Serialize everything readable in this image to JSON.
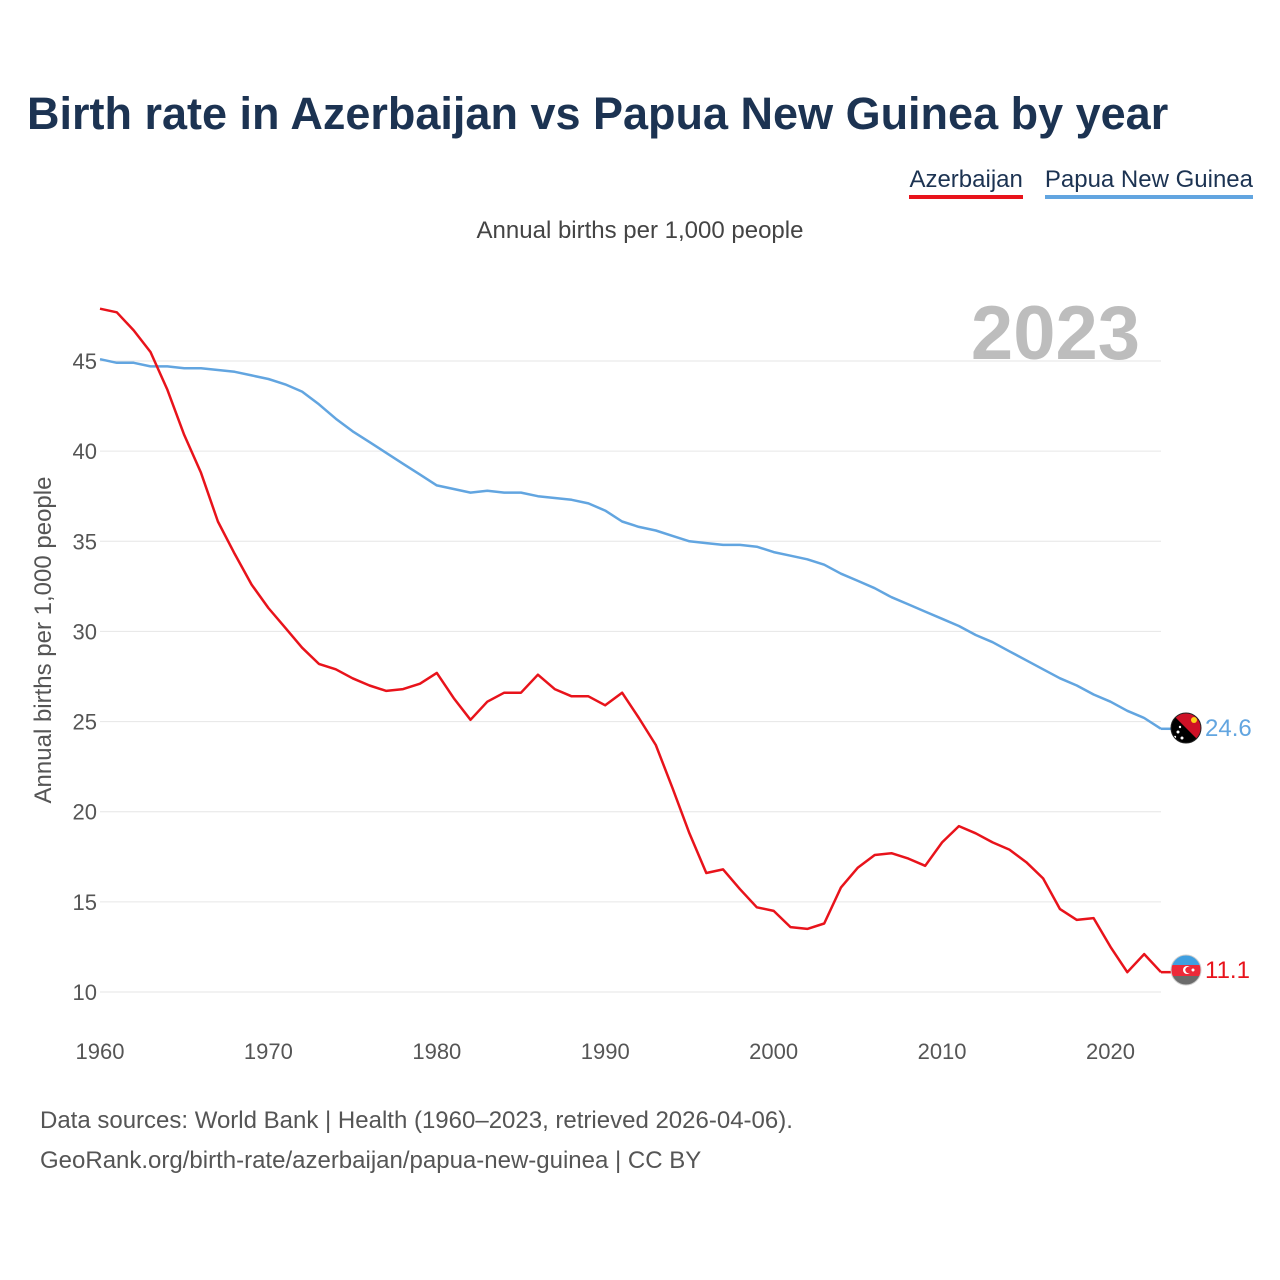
{
  "chart_data": {
    "type": "line",
    "title": "Birth rate in Azerbaijan vs Papua New Guinea by year",
    "subtitle": "Annual births per 1,000 people",
    "ylabel": "Annual births per 1,000 people",
    "xlabel": "",
    "year_badge": "2023",
    "xlim": [
      1960,
      2023
    ],
    "ylim": [
      10,
      47.5
    ],
    "x_ticks": [
      1960,
      1970,
      1980,
      1990,
      2000,
      2010,
      2020
    ],
    "y_ticks": [
      10,
      15,
      20,
      25,
      30,
      35,
      40,
      45
    ],
    "grid": true,
    "legend_position": "top-right",
    "x": [
      1960,
      1961,
      1962,
      1963,
      1964,
      1965,
      1966,
      1967,
      1968,
      1969,
      1970,
      1971,
      1972,
      1973,
      1974,
      1975,
      1976,
      1977,
      1978,
      1979,
      1980,
      1981,
      1982,
      1983,
      1984,
      1985,
      1986,
      1987,
      1988,
      1989,
      1990,
      1991,
      1992,
      1993,
      1994,
      1995,
      1996,
      1997,
      1998,
      1999,
      2000,
      2001,
      2002,
      2003,
      2004,
      2005,
      2006,
      2007,
      2008,
      2009,
      2010,
      2011,
      2012,
      2013,
      2014,
      2015,
      2016,
      2017,
      2018,
      2019,
      2020,
      2021,
      2022,
      2023
    ],
    "series": [
      {
        "name": "Azerbaijan",
        "color": "#e8131b",
        "end_label": "11.1",
        "values": [
          47.9,
          47.7,
          46.7,
          45.5,
          43.4,
          40.9,
          38.8,
          36.1,
          34.3,
          32.6,
          31.3,
          30.2,
          29.1,
          28.2,
          27.9,
          27.4,
          27.0,
          26.7,
          26.8,
          27.1,
          27.7,
          26.3,
          25.1,
          26.1,
          26.6,
          26.6,
          27.6,
          26.8,
          26.4,
          26.4,
          25.9,
          26.6,
          25.2,
          23.7,
          21.3,
          18.8,
          16.6,
          16.8,
          15.7,
          14.7,
          14.5,
          13.6,
          13.5,
          13.8,
          15.8,
          16.9,
          17.6,
          17.7,
          17.4,
          17.0,
          18.3,
          19.2,
          18.8,
          18.3,
          17.9,
          17.2,
          16.3,
          14.6,
          14.0,
          14.1,
          12.5,
          11.1,
          12.1,
          11.1
        ]
      },
      {
        "name": "Papua New Guinea",
        "color": "#62a5e0",
        "end_label": "24.6",
        "values": [
          45.1,
          44.9,
          44.9,
          44.7,
          44.7,
          44.6,
          44.6,
          44.5,
          44.4,
          44.2,
          44.0,
          43.7,
          43.3,
          42.6,
          41.8,
          41.1,
          40.5,
          39.9,
          39.3,
          38.7,
          38.1,
          37.9,
          37.7,
          37.8,
          37.7,
          37.7,
          37.5,
          37.4,
          37.3,
          37.1,
          36.7,
          36.1,
          35.8,
          35.6,
          35.3,
          35.0,
          34.9,
          34.8,
          34.8,
          34.7,
          34.4,
          34.2,
          34.0,
          33.7,
          33.2,
          32.8,
          32.4,
          31.9,
          31.5,
          31.1,
          30.7,
          30.3,
          29.8,
          29.4,
          28.9,
          28.4,
          27.9,
          27.4,
          27.0,
          26.5,
          26.1,
          25.6,
          25.2,
          24.6
        ]
      }
    ]
  },
  "sources": {
    "line1": "Data sources: World Bank | Health (1960–2023, retrieved 2026-04-06).",
    "line2": "GeoRank.org/birth-rate/azerbaijan/papua-new-guinea | CC BY"
  },
  "icons": {
    "azerbaijan_flag": "azerbaijan-flag-icon",
    "png_flag": "papua-new-guinea-flag-icon"
  }
}
